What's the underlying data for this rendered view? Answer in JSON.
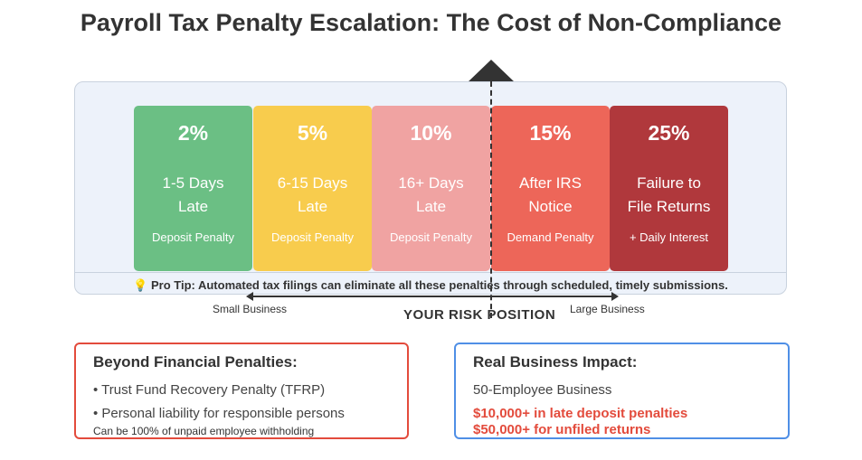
{
  "title": "Payroll Tax Penalty Escalation: The Cost of Non-Compliance",
  "tiers": [
    {
      "percent": "2%",
      "line1": "1-5 Days",
      "line2": "Late",
      "sub": "Deposit Penalty",
      "color": "#6bbf84"
    },
    {
      "percent": "5%",
      "line1": "6-15 Days",
      "line2": "Late",
      "sub": "Deposit Penalty",
      "color": "#f8cc4d"
    },
    {
      "percent": "10%",
      "line1": "16+ Days",
      "line2": "Late",
      "sub": "Deposit Penalty",
      "color": "#f0a3a2"
    },
    {
      "percent": "15%",
      "line1": "After IRS",
      "line2": "Notice",
      "sub": "Demand Penalty",
      "color": "#ed6659"
    },
    {
      "percent": "25%",
      "line1": "Failure to",
      "line2": "File Returns",
      "sub": "+ Daily Interest",
      "color": "#b0383c"
    }
  ],
  "tip": {
    "icon": "lightbulb-icon",
    "text": "💡 Pro Tip: Automated tax filings can eliminate all these penalties through scheduled, timely submissions."
  },
  "axis": {
    "left_label": "Small Business",
    "right_label": "Large Business",
    "risk_label": "YOUR RISK POSITION"
  },
  "cards": {
    "left": {
      "heading": "Beyond Financial Penalties:",
      "bullet1": "• Trust Fund Recovery Penalty (TFRP)",
      "bullet2": "• Personal liability for responsible persons",
      "note": "Can be 100% of unpaid employee withholding",
      "border_color": "#e34b3c"
    },
    "right": {
      "heading": "Real Business Impact:",
      "line1": "50-Employee Business",
      "highlight1": "$10,000+ in late deposit penalties",
      "highlight2": "$50,000+ for unfiled returns",
      "border_color": "#4f8fe6"
    }
  }
}
